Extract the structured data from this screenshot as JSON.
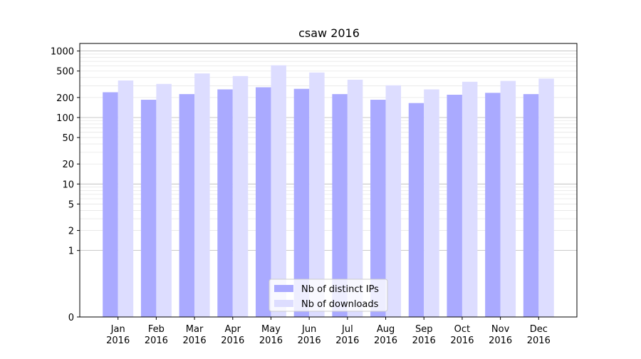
{
  "chart_data": {
    "type": "bar",
    "title": "csaw 2016",
    "xlabel": "",
    "ylabel": "",
    "scale": "symlog",
    "ylim": [
      0,
      1300
    ],
    "categories": [
      [
        "Jan",
        "2016"
      ],
      [
        "Feb",
        "2016"
      ],
      [
        "Mar",
        "2016"
      ],
      [
        "Apr",
        "2016"
      ],
      [
        "May",
        "2016"
      ],
      [
        "Jun",
        "2016"
      ],
      [
        "Jul",
        "2016"
      ],
      [
        "Aug",
        "2016"
      ],
      [
        "Sep",
        "2016"
      ],
      [
        "Oct",
        "2016"
      ],
      [
        "Nov",
        "2016"
      ],
      [
        "Dec",
        "2016"
      ]
    ],
    "y_ticks": [
      {
        "value": 0,
        "label": "0"
      },
      {
        "value": 1,
        "label": "1"
      },
      {
        "value": 2,
        "label": "2"
      },
      {
        "value": 5,
        "label": "5"
      },
      {
        "value": 10,
        "label": "10"
      },
      {
        "value": 20,
        "label": "20"
      },
      {
        "value": 50,
        "label": "50"
      },
      {
        "value": 100,
        "label": "100"
      },
      {
        "value": 200,
        "label": "200"
      },
      {
        "value": 500,
        "label": "500"
      },
      {
        "value": 1000,
        "label": "1000"
      }
    ],
    "grid": true,
    "legend_position": "bottom-center",
    "series": [
      {
        "name": "Nb of distinct IPs",
        "color": "#aaaaff",
        "values": [
          240,
          185,
          225,
          265,
          285,
          270,
          225,
          185,
          165,
          220,
          235,
          225
        ]
      },
      {
        "name": "Nb of downloads",
        "color": "#ddddff",
        "values": [
          360,
          320,
          460,
          420,
          610,
          475,
          370,
          305,
          265,
          345,
          355,
          385
        ]
      }
    ]
  }
}
